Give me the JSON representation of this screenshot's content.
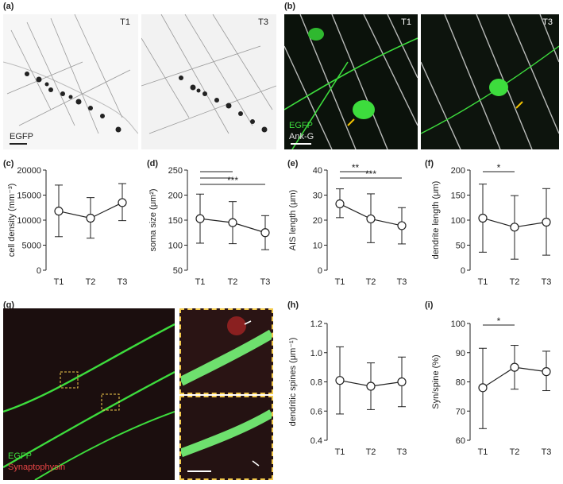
{
  "colors": {
    "egfp": "#3ddc3d",
    "ankg": "#e6e6e6",
    "synaptophysin": "#d93a3a",
    "arrow_yellow": "#f2c200",
    "inset_border": "#f2c94c"
  },
  "panels": {
    "a": {
      "label": "(a)",
      "left_tag": "T1",
      "right_tag": "T3",
      "stain": "EGFP"
    },
    "b": {
      "label": "(b)",
      "left_tag": "T1",
      "right_tag": "T3",
      "stain1": "EGFP",
      "stain2": "Ank-G"
    },
    "c": {
      "label": "(c)"
    },
    "d": {
      "label": "(d)"
    },
    "e": {
      "label": "(e)"
    },
    "f": {
      "label": "(f)"
    },
    "g": {
      "label": "(g)",
      "stain1": "EGFP",
      "stain2": "Synaptophysin"
    },
    "h": {
      "label": "(h)"
    },
    "i": {
      "label": "(i)"
    }
  },
  "chart_data": [
    {
      "id": "c",
      "type": "line",
      "categories": [
        "T1",
        "T2",
        "T3"
      ],
      "values": [
        11800,
        10400,
        13500
      ],
      "err_low": [
        6700,
        6400,
        9900
      ],
      "err_high": [
        17000,
        14500,
        17300
      ],
      "ylabel": "cell density (mm⁻³)",
      "ylim": [
        0,
        20000
      ],
      "yticks": [
        0,
        5000,
        10000,
        15000,
        20000
      ],
      "yticklabels": [
        "0",
        "5000",
        "10000",
        "15000",
        "20000"
      ],
      "sig": []
    },
    {
      "id": "d",
      "type": "line",
      "categories": [
        "T1",
        "T2",
        "T3"
      ],
      "values": [
        153,
        145,
        125
      ],
      "err_low": [
        104,
        103,
        91
      ],
      "err_high": [
        202,
        187,
        159
      ],
      "ylabel": "soma size (μm²)",
      "ylim": [
        50,
        250
      ],
      "yticks": [
        50,
        100,
        150,
        200,
        250
      ],
      "yticklabels": [
        "50",
        "100",
        "150",
        "200",
        "250"
      ],
      "sig": [
        {
          "from": 0,
          "to": 1,
          "level": 1,
          "text": ""
        },
        {
          "from": 0,
          "to": 1,
          "level": 2,
          "text": ""
        },
        {
          "from": 0,
          "to": 2,
          "level": 3,
          "text": "***"
        }
      ]
    },
    {
      "id": "e",
      "type": "line",
      "categories": [
        "T1",
        "T2",
        "T3"
      ],
      "values": [
        26.5,
        20.5,
        17.8
      ],
      "err_low": [
        21,
        11,
        10.5
      ],
      "err_high": [
        32.5,
        30.5,
        25
      ],
      "ylabel": "AIS length (μm)",
      "ylim": [
        0,
        40
      ],
      "yticks": [
        0,
        10,
        20,
        30,
        40
      ],
      "yticklabels": [
        "0",
        "10",
        "20",
        "30",
        "40"
      ],
      "sig": [
        {
          "from": 0,
          "to": 1,
          "level": 1,
          "text": "**"
        },
        {
          "from": 0,
          "to": 2,
          "level": 2,
          "text": "***"
        }
      ]
    },
    {
      "id": "f",
      "type": "line",
      "categories": [
        "T1",
        "T2",
        "T3"
      ],
      "values": [
        104,
        86,
        96
      ],
      "err_low": [
        36,
        22,
        30
      ],
      "err_high": [
        172,
        149,
        163
      ],
      "ylabel": "dendrite length (μm)",
      "ylim": [
        0,
        200
      ],
      "yticks": [
        0,
        50,
        100,
        150,
        200
      ],
      "yticklabels": [
        "0",
        "50",
        "100",
        "150",
        "200"
      ],
      "sig": [
        {
          "from": 0,
          "to": 1,
          "level": 1,
          "text": "*"
        }
      ]
    },
    {
      "id": "h",
      "type": "line",
      "categories": [
        "T1",
        "T2",
        "T3"
      ],
      "values": [
        0.81,
        0.77,
        0.8
      ],
      "err_low": [
        0.58,
        0.61,
        0.63
      ],
      "err_high": [
        1.04,
        0.93,
        0.97
      ],
      "ylabel": "dendritic spines (μm⁻¹)",
      "ylim": [
        0.4,
        1.2
      ],
      "yticks": [
        0.4,
        0.6,
        0.8,
        1.0,
        1.2
      ],
      "yticklabels": [
        "0.4",
        "0.6",
        "0.8",
        "1.0",
        "1.2"
      ],
      "sig": []
    },
    {
      "id": "i",
      "type": "line",
      "categories": [
        "T1",
        "T2",
        "T3"
      ],
      "values": [
        78,
        85,
        83.5
      ],
      "err_low": [
        64,
        77.5,
        77
      ],
      "err_high": [
        91.5,
        92.5,
        90.5
      ],
      "ylabel": "Syn/spine (%)",
      "ylim": [
        60,
        100
      ],
      "yticks": [
        60,
        70,
        80,
        90,
        100
      ],
      "yticklabels": [
        "60",
        "70",
        "80",
        "90",
        "100"
      ],
      "sig": [
        {
          "from": 0,
          "to": 1,
          "level": 1,
          "text": "*"
        }
      ]
    }
  ]
}
